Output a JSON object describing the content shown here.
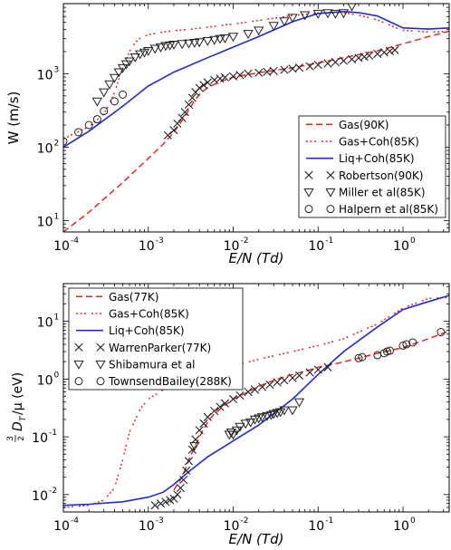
{
  "figure": {
    "panels": [
      "top",
      "bottom"
    ]
  },
  "colors": {
    "gas": "#e8271f",
    "coh": "#e8271f",
    "liq": "#1f2bd8",
    "markers": "#222222",
    "axes": "#000000"
  },
  "chart_data": [
    {
      "type": "line",
      "title": "",
      "xlabel": "E/N (Td)",
      "ylabel": "W (m/s)",
      "xscale": "log",
      "yscale": "log",
      "xlim": [
        0.0001,
        3.5
      ],
      "ylim": [
        7,
        9000
      ],
      "x_ticks": [
        0.0001,
        0.001,
        0.01,
        0.1,
        1
      ],
      "x_tick_labels": [
        "10",
        "10",
        "10",
        "10",
        "10"
      ],
      "x_tick_exponents": [
        "-4",
        "-3",
        "-2",
        "-1",
        "0"
      ],
      "y_ticks": [
        10,
        100,
        1000
      ],
      "y_tick_labels": [
        "10",
        "10",
        "10"
      ],
      "y_tick_exponents": [
        "1",
        "2",
        "3"
      ],
      "legend_position": "lower-right",
      "series": [
        {
          "name": "Gas(90K)",
          "style": "dashed",
          "color": "#e8271f",
          "x": [
            0.0001,
            0.0002,
            0.0005,
            0.001,
            0.0015,
            0.002,
            0.0025,
            0.003,
            0.0035,
            0.004,
            0.005,
            0.007,
            0.01,
            0.02,
            0.05,
            0.1,
            0.2,
            0.5,
            1,
            2,
            3.5
          ],
          "y": [
            7,
            13,
            33,
            70,
            110,
            160,
            230,
            320,
            430,
            520,
            650,
            780,
            900,
            1030,
            1200,
            1400,
            1650,
            2050,
            2550,
            3200,
            3800
          ]
        },
        {
          "name": "Gas+Coh(85K)",
          "style": "dashdot",
          "color": "#e8271f",
          "x": [
            0.0001,
            0.0002,
            0.0003,
            0.0004,
            0.0005,
            0.0006,
            0.0007,
            0.0008,
            0.001,
            0.0015,
            0.002,
            0.003,
            0.005,
            0.01,
            0.02,
            0.05,
            0.1,
            0.15,
            0.2,
            0.3,
            0.5,
            0.8,
            1,
            2,
            3.5
          ],
          "y": [
            130,
            190,
            280,
            550,
            1200,
            2000,
            2650,
            3050,
            3400,
            3700,
            3850,
            4000,
            4300,
            4750,
            5300,
            6200,
            6700,
            6800,
            6700,
            6300,
            5400,
            4300,
            3900,
            3700,
            3750
          ]
        },
        {
          "name": "Liq+Coh(85K)",
          "style": "solid",
          "color": "#1f2bd8",
          "x": [
            0.0001,
            0.0002,
            0.0005,
            0.001,
            0.002,
            0.005,
            0.01,
            0.02,
            0.05,
            0.1,
            0.2,
            0.3,
            0.5,
            0.7,
            1,
            2,
            3.5
          ],
          "y": [
            100,
            165,
            360,
            680,
            1050,
            1650,
            2300,
            3200,
            5100,
            6600,
            7000,
            6800,
            6100,
            5100,
            4200,
            4050,
            4200
          ]
        },
        {
          "name": "Robertson(90K)",
          "style": "marker-x",
          "color": "#222222",
          "x": [
            0.0017,
            0.002,
            0.0022,
            0.0025,
            0.0027,
            0.003,
            0.0033,
            0.0036,
            0.004,
            0.0045,
            0.005,
            0.006,
            0.007,
            0.008,
            0.01,
            0.012,
            0.015,
            0.02,
            0.025,
            0.03,
            0.04,
            0.05,
            0.06,
            0.08,
            0.1,
            0.13,
            0.16,
            0.2,
            0.25,
            0.3,
            0.35,
            0.4,
            0.5,
            0.6,
            0.7,
            0.8
          ],
          "y": [
            145,
            170,
            210,
            250,
            300,
            380,
            470,
            560,
            640,
            700,
            760,
            820,
            860,
            890,
            920,
            960,
            1000,
            1030,
            1060,
            1090,
            1130,
            1170,
            1210,
            1260,
            1320,
            1380,
            1440,
            1500,
            1570,
            1640,
            1700,
            1760,
            1860,
            1950,
            2030,
            2100
          ]
        },
        {
          "name": "Miller et al(85K)",
          "style": "marker-triangle",
          "color": "#222222",
          "x": [
            0.00025,
            0.0003,
            0.00035,
            0.0004,
            0.00045,
            0.0005,
            0.00055,
            0.0006,
            0.0007,
            0.0008,
            0.0009,
            0.001,
            0.0012,
            0.0014,
            0.0016,
            0.0018,
            0.002,
            0.0025,
            0.003,
            0.0035,
            0.004,
            0.005,
            0.006,
            0.007,
            0.008,
            0.01,
            0.015,
            0.02,
            0.03,
            0.04,
            0.05,
            0.07,
            0.1,
            0.13,
            0.16,
            0.2,
            0.25
          ],
          "y": [
            420,
            560,
            720,
            880,
            1050,
            1200,
            1350,
            1480,
            1680,
            1850,
            1950,
            2050,
            2200,
            2300,
            2400,
            2450,
            2500,
            2550,
            2600,
            2650,
            2700,
            2800,
            2900,
            3000,
            3050,
            3200,
            3500,
            3900,
            4500,
            5200,
            5800,
            6300,
            6600,
            6700,
            6600,
            6700,
            8300
          ]
        },
        {
          "name": "Halpern et al(85K)",
          "style": "marker-circle",
          "color": "#222222",
          "x": [
            0.0001,
            0.00015,
            0.0002,
            0.00025,
            0.0003,
            0.0004,
            0.0005
          ],
          "y": [
            120,
            160,
            200,
            240,
            310,
            420,
            520
          ]
        }
      ]
    },
    {
      "type": "line",
      "title": "",
      "xlabel": "E/N (Td)",
      "ylabel": "3/2 D_T/μ (eV)",
      "ylabel_prefix_num": "3",
      "ylabel_prefix_den": "2",
      "ylabel_main": "D",
      "ylabel_sub": "T",
      "ylabel_tail": "/μ (eV)",
      "xscale": "log",
      "yscale": "log",
      "xlim": [
        0.0001,
        3.5
      ],
      "ylim": [
        0.005,
        45
      ],
      "x_ticks": [
        0.0001,
        0.001,
        0.01,
        0.1,
        1
      ],
      "x_tick_labels": [
        "10",
        "10",
        "10",
        "10",
        "10"
      ],
      "x_tick_exponents": [
        "-4",
        "-3",
        "-2",
        "-1",
        "0"
      ],
      "y_ticks": [
        0.01,
        0.1,
        1,
        10
      ],
      "y_tick_labels": [
        "10",
        "10",
        "10",
        "10"
      ],
      "y_tick_exponents": [
        "-2",
        "-1",
        "0",
        "1"
      ],
      "legend_position": "upper-left",
      "series": [
        {
          "name": "Gas(77K)",
          "style": "dashed",
          "color": "#e8271f",
          "x": [
            0.002,
            0.0025,
            0.003,
            0.004,
            0.005,
            0.006,
            0.008,
            0.01,
            0.015,
            0.02,
            0.03,
            0.05,
            0.08,
            0.1,
            0.15,
            0.2,
            0.3,
            0.5,
            1,
            2,
            3.5
          ],
          "y": [
            0.012,
            0.02,
            0.04,
            0.1,
            0.18,
            0.25,
            0.35,
            0.45,
            0.6,
            0.75,
            0.95,
            1.2,
            1.45,
            1.6,
            1.8,
            2.0,
            2.3,
            2.8,
            3.5,
            5.0,
            6.8
          ]
        },
        {
          "name": "Gas+Coh(85K)",
          "style": "dashdot",
          "color": "#e8271f",
          "x": [
            0.0001,
            0.0002,
            0.0003,
            0.0004,
            0.0005,
            0.0006,
            0.0008,
            0.001,
            0.002,
            0.005,
            0.01,
            0.02,
            0.05,
            0.1,
            0.2,
            0.5,
            1,
            2,
            3.5
          ],
          "y": [
            0.006,
            0.0065,
            0.008,
            0.013,
            0.04,
            0.12,
            0.3,
            0.45,
            0.85,
            1.3,
            1.7,
            2.2,
            3.0,
            3.8,
            5.0,
            9.0,
            17,
            25,
            26
          ]
        },
        {
          "name": "Liq+Coh(85K)",
          "style": "solid",
          "color": "#1f2bd8",
          "x": [
            0.0001,
            0.0002,
            0.0005,
            0.001,
            0.0015,
            0.002,
            0.003,
            0.005,
            0.01,
            0.02,
            0.05,
            0.1,
            0.2,
            0.5,
            1,
            2,
            3.5
          ],
          "y": [
            0.0065,
            0.0068,
            0.0075,
            0.009,
            0.011,
            0.015,
            0.025,
            0.045,
            0.085,
            0.16,
            0.45,
            1.2,
            3.0,
            8.0,
            16,
            22,
            28
          ]
        },
        {
          "name": "WarrenParker(77K)",
          "style": "marker-x",
          "color": "#222222",
          "x": [
            0.0012,
            0.0014,
            0.0016,
            0.0018,
            0.002,
            0.0022,
            0.0024,
            0.0026,
            0.0028,
            0.003,
            0.0033,
            0.0036,
            0.004,
            0.0045,
            0.005,
            0.006,
            0.007,
            0.008,
            0.01,
            0.012,
            0.015,
            0.018,
            0.022,
            0.027,
            0.033,
            0.04,
            0.05,
            0.06,
            0.08,
            0.1,
            0.13
          ],
          "y": [
            0.0065,
            0.007,
            0.0075,
            0.008,
            0.0085,
            0.01,
            0.013,
            0.018,
            0.026,
            0.038,
            0.06,
            0.09,
            0.13,
            0.17,
            0.22,
            0.28,
            0.33,
            0.38,
            0.45,
            0.52,
            0.6,
            0.66,
            0.73,
            0.8,
            0.88,
            0.95,
            1.05,
            1.15,
            1.3,
            1.45,
            1.6
          ]
        },
        {
          "name": "Shibamura et al",
          "style": "marker-triangle",
          "color": "#222222",
          "x": [
            0.0035,
            0.009,
            0.0095,
            0.01,
            0.011,
            0.012,
            0.014,
            0.016,
            0.018,
            0.02,
            0.022,
            0.025,
            0.028,
            0.03,
            0.033,
            0.036,
            0.04,
            0.05,
            0.06
          ],
          "y": [
            0.07,
            0.11,
            0.12,
            0.11,
            0.13,
            0.15,
            0.17,
            0.18,
            0.2,
            0.21,
            0.22,
            0.23,
            0.24,
            0.25,
            0.26,
            0.27,
            0.29,
            0.29,
            0.4
          ]
        },
        {
          "name": "TownsendBailey(288K)",
          "style": "marker-circle",
          "color": "#222222",
          "x": [
            0.3,
            0.33,
            0.5,
            0.6,
            0.65,
            0.7,
            1,
            1.1,
            1.3,
            2.8
          ],
          "y": [
            2.3,
            2.4,
            2.6,
            2.8,
            3.0,
            3.1,
            3.8,
            4.0,
            4.3,
            6.5
          ]
        }
      ]
    }
  ]
}
